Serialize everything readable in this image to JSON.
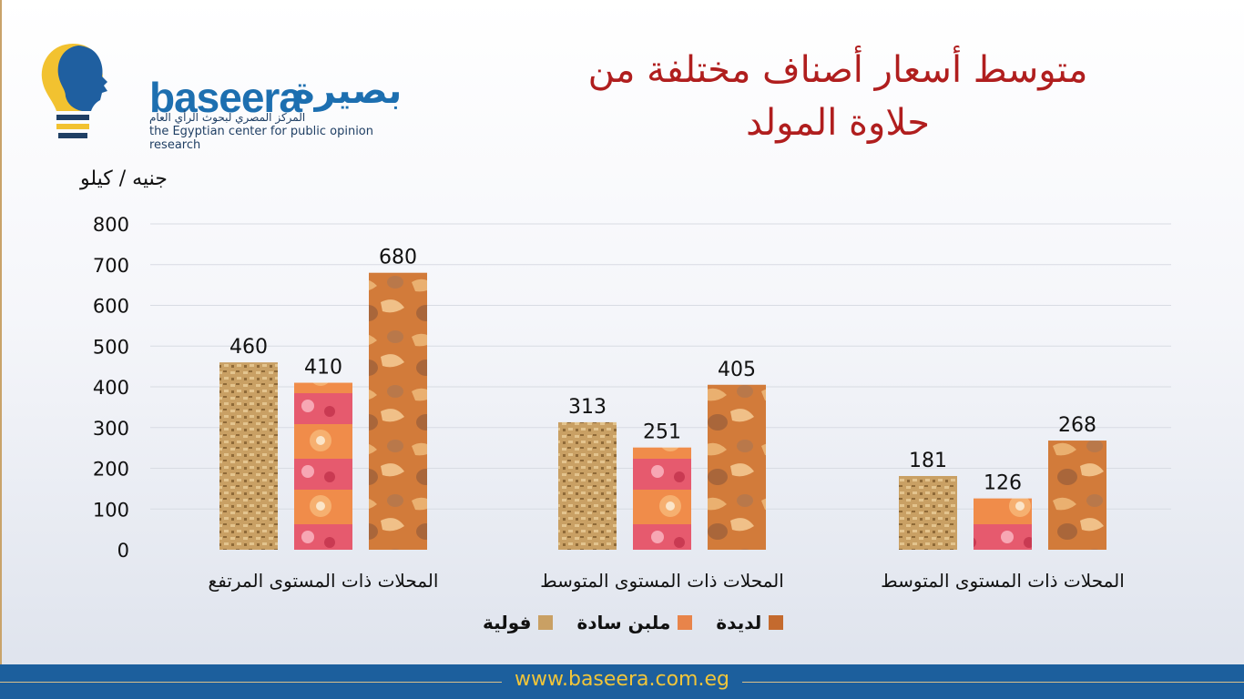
{
  "logo": {
    "word": "baseera",
    "arabic_name": "بصيرة",
    "subtitle_ar": "المركز المصري لبحوث الرأي العام",
    "subtitle_en": "the Egyptian center for public opinion research"
  },
  "title": {
    "line1": "متوسط أسعار أصناف مختلفة من",
    "line2": "حلاوة المولد"
  },
  "footer": {
    "url": "www.baseera.com.eg"
  },
  "colors": {
    "title": "#b01e1e",
    "brand_blue": "#1c5f9d",
    "footer_text": "#f0c53a",
    "series_foulia": "#c9a064",
    "series_malban": "#e8844a",
    "series_ladida": "#c46a2e"
  },
  "chart_data": {
    "type": "bar",
    "title": "متوسط أسعار أصناف مختلفة من حلاوة المولد",
    "ylabel": "جنيه / كيلو",
    "ylim": [
      0,
      800
    ],
    "yticks": [
      0,
      100,
      200,
      300,
      400,
      500,
      600,
      700,
      800
    ],
    "categories": [
      "المحلات ذات المستوى المرتفع",
      "المحلات ذات المستوى المتوسط",
      "المحلات ذات المستوى المتوسط"
    ],
    "series": [
      {
        "name": "فولية",
        "values": [
          460,
          313,
          181
        ]
      },
      {
        "name": "ملبن سادة",
        "values": [
          410,
          251,
          126
        ]
      },
      {
        "name": "لديدة",
        "values": [
          680,
          405,
          268
        ]
      }
    ],
    "grid": true,
    "legend_position": "bottom"
  }
}
